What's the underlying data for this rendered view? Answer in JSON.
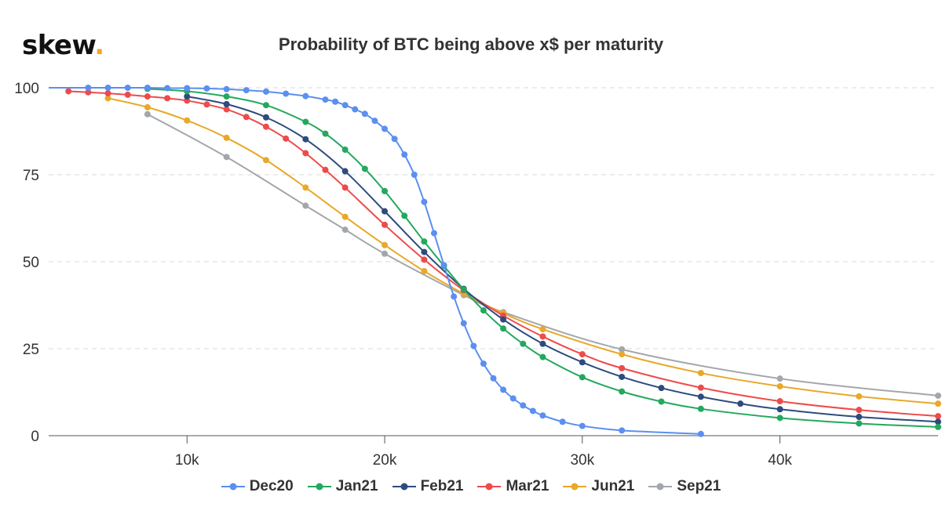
{
  "brand": {
    "name": "skew",
    "dot": "."
  },
  "chart_data": {
    "type": "line",
    "title": "Probability of BTC being above x$ per maturity",
    "xlabel": "",
    "ylabel": "",
    "xlim": [
      3000,
      48000
    ],
    "ylim": [
      0,
      100
    ],
    "xticks": [
      {
        "value": 10000,
        "label": "10k"
      },
      {
        "value": 20000,
        "label": "20k"
      },
      {
        "value": 30000,
        "label": "30k"
      },
      {
        "value": 40000,
        "label": "40k"
      }
    ],
    "yticks": [
      {
        "value": 0,
        "label": "0"
      },
      {
        "value": 25,
        "label": "25"
      },
      {
        "value": 50,
        "label": "50"
      },
      {
        "value": 75,
        "label": "75"
      },
      {
        "value": 100,
        "label": "100"
      }
    ],
    "grid": "horizontal-dashed",
    "legend_position": "bottom",
    "series": [
      {
        "name": "Dec20",
        "color": "#5b8ff0",
        "points": [
          [
            3000,
            100
          ],
          [
            5000,
            100
          ],
          [
            6000,
            100
          ],
          [
            7000,
            100
          ],
          [
            8000,
            100
          ],
          [
            9000,
            99.9
          ],
          [
            10000,
            99.9
          ],
          [
            11000,
            99.8
          ],
          [
            12000,
            99.6
          ],
          [
            13000,
            99.3
          ],
          [
            14000,
            98.9
          ],
          [
            15000,
            98.3
          ],
          [
            16000,
            97.6
          ],
          [
            17000,
            96.6
          ],
          [
            17500,
            96.0
          ],
          [
            18000,
            95.0
          ],
          [
            18500,
            93.8
          ],
          [
            19000,
            92.5
          ],
          [
            19500,
            90.5
          ],
          [
            20000,
            88.2
          ],
          [
            20500,
            85.3
          ],
          [
            21000,
            80.8
          ],
          [
            21500,
            75.0
          ],
          [
            22000,
            67.2
          ],
          [
            22500,
            58.2
          ],
          [
            23000,
            49.0
          ],
          [
            23500,
            40.0
          ],
          [
            24000,
            32.3
          ],
          [
            24500,
            25.8
          ],
          [
            25000,
            20.7
          ],
          [
            25500,
            16.5
          ],
          [
            26000,
            13.2
          ],
          [
            26500,
            10.7
          ],
          [
            27000,
            8.7
          ],
          [
            27500,
            7.1
          ],
          [
            28000,
            5.8
          ],
          [
            29000,
            4.0
          ],
          [
            30000,
            2.8
          ],
          [
            32000,
            1.5
          ],
          [
            36000,
            0.5
          ]
        ]
      },
      {
        "name": "Jan21",
        "color": "#23a85e",
        "points": [
          [
            8000,
            99.7
          ],
          [
            10000,
            99.0
          ],
          [
            12000,
            97.5
          ],
          [
            14000,
            95.0
          ],
          [
            16000,
            90.2
          ],
          [
            17000,
            86.8
          ],
          [
            18000,
            82.2
          ],
          [
            19000,
            76.7
          ],
          [
            20000,
            70.3
          ],
          [
            21000,
            63.2
          ],
          [
            22000,
            55.8
          ],
          [
            23000,
            48.8
          ],
          [
            24000,
            42.0
          ],
          [
            25000,
            36.0
          ],
          [
            26000,
            30.8
          ],
          [
            27000,
            26.4
          ],
          [
            28000,
            22.6
          ],
          [
            30000,
            16.8
          ],
          [
            32000,
            12.7
          ],
          [
            34000,
            9.8
          ],
          [
            36000,
            7.7
          ],
          [
            40000,
            5.1
          ],
          [
            44000,
            3.5
          ],
          [
            48000,
            2.5
          ]
        ]
      },
      {
        "name": "Feb21",
        "color": "#2d4b7e",
        "points": [
          [
            10000,
            97.5
          ],
          [
            12000,
            95.3
          ],
          [
            14000,
            91.5
          ],
          [
            16000,
            85.2
          ],
          [
            18000,
            76.0
          ],
          [
            20000,
            64.5
          ],
          [
            22000,
            52.8
          ],
          [
            24000,
            42.2
          ],
          [
            26000,
            33.4
          ],
          [
            28000,
            26.4
          ],
          [
            30000,
            21.1
          ],
          [
            32000,
            16.9
          ],
          [
            34000,
            13.7
          ],
          [
            36000,
            11.2
          ],
          [
            38000,
            9.2
          ],
          [
            40000,
            7.6
          ],
          [
            44000,
            5.4
          ],
          [
            48000,
            4.0
          ]
        ]
      },
      {
        "name": "Mar21",
        "color": "#ef4a4a",
        "points": [
          [
            4000,
            99.0
          ],
          [
            5000,
            98.7
          ],
          [
            6000,
            98.4
          ],
          [
            7000,
            98.0
          ],
          [
            8000,
            97.5
          ],
          [
            9000,
            97.0
          ],
          [
            10000,
            96.3
          ],
          [
            11000,
            95.2
          ],
          [
            12000,
            93.8
          ],
          [
            13000,
            91.6
          ],
          [
            14000,
            88.8
          ],
          [
            15000,
            85.4
          ],
          [
            16000,
            81.2
          ],
          [
            17000,
            76.4
          ],
          [
            18000,
            71.3
          ],
          [
            20000,
            60.6
          ],
          [
            22000,
            50.6
          ],
          [
            24000,
            41.8
          ],
          [
            26000,
            34.5
          ],
          [
            28000,
            28.5
          ],
          [
            30000,
            23.4
          ],
          [
            32000,
            19.4
          ],
          [
            36000,
            13.8
          ],
          [
            40000,
            9.9
          ],
          [
            44000,
            7.4
          ],
          [
            48000,
            5.6
          ]
        ]
      },
      {
        "name": "Jun21",
        "color": "#e8a82a",
        "points": [
          [
            6000,
            97.0
          ],
          [
            8000,
            94.4
          ],
          [
            10000,
            90.6
          ],
          [
            12000,
            85.6
          ],
          [
            14000,
            79.2
          ],
          [
            16000,
            71.3
          ],
          [
            18000,
            62.9
          ],
          [
            20000,
            54.8
          ],
          [
            22000,
            47.3
          ],
          [
            24000,
            40.8
          ],
          [
            26000,
            35.2
          ],
          [
            28000,
            30.6
          ],
          [
            32000,
            23.4
          ],
          [
            36000,
            18.0
          ],
          [
            40000,
            14.2
          ],
          [
            44000,
            11.3
          ],
          [
            48000,
            9.2
          ]
        ]
      },
      {
        "name": "Sep21",
        "color": "#a3a7ab",
        "points": [
          [
            8000,
            92.4
          ],
          [
            12000,
            80.1
          ],
          [
            16000,
            66.1
          ],
          [
            18000,
            59.2
          ],
          [
            20000,
            52.3
          ],
          [
            24000,
            40.4
          ],
          [
            26000,
            35.5
          ],
          [
            32000,
            24.8
          ],
          [
            40000,
            16.4
          ],
          [
            48000,
            11.5
          ]
        ]
      }
    ]
  }
}
